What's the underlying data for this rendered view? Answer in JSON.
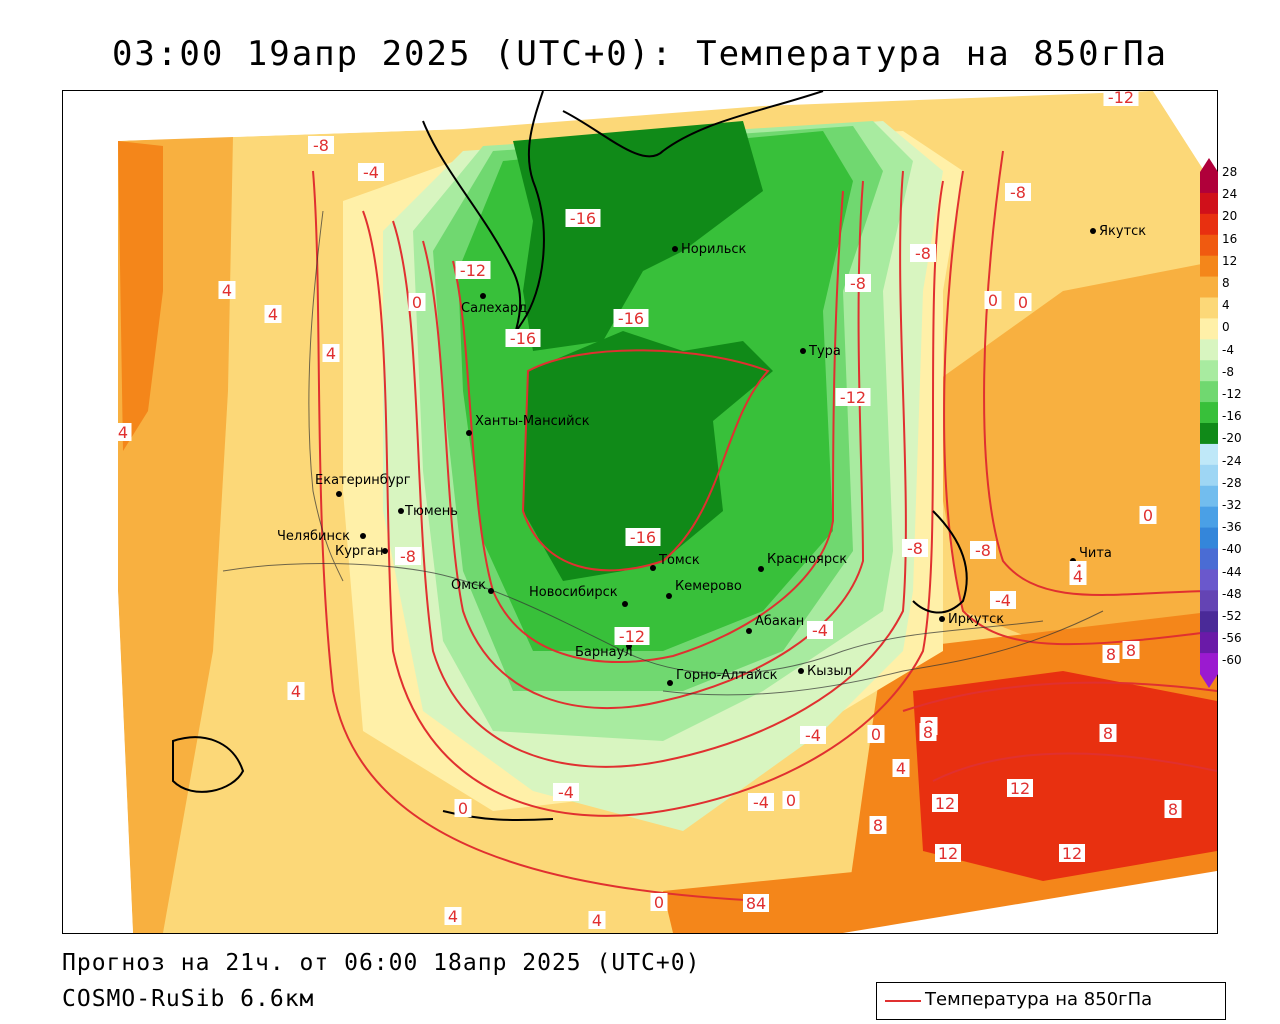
{
  "title": "03:00 19апр 2025 (UTC+0): Температура на 850гПа",
  "forecast_text": "Прогноз на 21ч. от 06:00 18апр 2025 (UTC+0)",
  "model_text": "COSMO-RuSib 6.6км",
  "legend": {
    "label": "Температура на 850гПа",
    "line_color": "#e03030"
  },
  "colorbar": {
    "ticks": [
      "28",
      "24",
      "20",
      "16",
      "12",
      "8",
      "4",
      "0",
      "-4",
      "-8",
      "-12",
      "-16",
      "-20",
      "-24",
      "-28",
      "-32",
      "-36",
      "-40",
      "-44",
      "-48",
      "-52",
      "-56",
      "-60"
    ],
    "colors": [
      "#b0003a",
      "#d0101a",
      "#e83010",
      "#f05a10",
      "#f4861a",
      "#f8b040",
      "#fcd878",
      "#fff0a8",
      "#d8f5c0",
      "#a8eba0",
      "#70d870",
      "#38c03a",
      "#108a18",
      "#bfe8f8",
      "#9ed6f4",
      "#72bdee",
      "#4aa0e6",
      "#3486da",
      "#4a6cd4",
      "#6a58cc",
      "#6444b4",
      "#4a2a98",
      "#6a1aa8",
      "#9b1ad0"
    ]
  },
  "cities": [
    {
      "name": "Салехард"
    },
    {
      "name": "Норильск"
    },
    {
      "name": "Тура"
    },
    {
      "name": "Якутск"
    },
    {
      "name": "Ханты-Мансийск"
    },
    {
      "name": "Екатеринбург"
    },
    {
      "name": "Тюмень"
    },
    {
      "name": "Челябинск"
    },
    {
      "name": "Курган"
    },
    {
      "name": "Омск"
    },
    {
      "name": "Новосибирск"
    },
    {
      "name": "Томск"
    },
    {
      "name": "Кемерово"
    },
    {
      "name": "Красноярск"
    },
    {
      "name": "Абакан"
    },
    {
      "name": "Барнаул"
    },
    {
      "name": "Горно-Алтайск"
    },
    {
      "name": "Кызыл"
    },
    {
      "name": "Иркутск"
    },
    {
      "name": "Чита"
    }
  ],
  "isoline_labels": [
    "-8",
    "-4",
    "-12",
    "0",
    "-16",
    "-16",
    "-16",
    "-12",
    "-8",
    "-12",
    "-8",
    "-8",
    "-16",
    "-12",
    "-8",
    "-4",
    "-8",
    "-4",
    "-4",
    "0",
    "4",
    "4",
    "4",
    "4",
    "8",
    "4",
    "0",
    "0",
    "-4",
    "-4",
    "0",
    "8",
    "8",
    "8",
    "12",
    "12",
    "12",
    "12",
    "8",
    "0",
    "0",
    "84",
    "4",
    "4",
    "4",
    "0",
    "-8",
    "4",
    "8",
    "8",
    "4"
  ]
}
